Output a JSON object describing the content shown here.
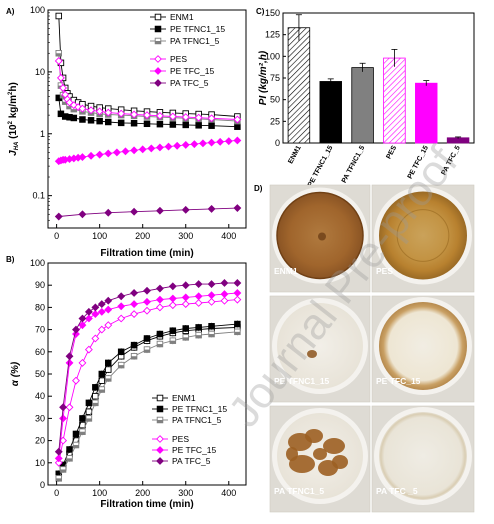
{
  "panels": {
    "a": "A)",
    "b": "B)",
    "c": "C)",
    "d": "D)"
  },
  "watermark": "Journal Pre-proof",
  "colors": {
    "ENM1": "#000000",
    "PE TFNC1_15": "#000000",
    "PA TFNC1_5": "#808080",
    "PES": "#ff00ff",
    "PE TFC_15": "#ff00ff",
    "PA TFC_5": "#800080"
  },
  "chart_data": [
    {
      "id": "A",
      "type": "line",
      "log_y": true,
      "xlabel": "Filtration time (min)",
      "ylabel_parts": [
        "J",
        "HA",
        " (10",
        "2",
        " kg/m",
        "2",
        "h)"
      ],
      "xlim": [
        -20,
        440
      ],
      "ylim": [
        0.03,
        100
      ],
      "xticks": [
        0,
        100,
        200,
        300,
        400
      ],
      "yticks": [
        {
          "v": 0.1,
          "label": "0.1"
        },
        {
          "v": 1,
          "label": "1"
        },
        {
          "v": 10,
          "label": "10"
        },
        {
          "v": 100,
          "label": "100"
        }
      ],
      "legend": [
        "ENM1",
        "PE TFNC1_15",
        "PA TFNC1_5",
        "PES",
        "PE TFC_15",
        "PA TFC_5"
      ],
      "series": [
        {
          "name": "ENM1",
          "marker": "square-open",
          "x": [
            5,
            10,
            15,
            20,
            25,
            30,
            40,
            50,
            60,
            80,
            100,
            120,
            150,
            180,
            210,
            240,
            270,
            300,
            330,
            360,
            420
          ],
          "y": [
            80,
            14,
            8,
            5.5,
            4.5,
            4.0,
            3.5,
            3.2,
            3.0,
            2.8,
            2.65,
            2.55,
            2.45,
            2.35,
            2.28,
            2.22,
            2.17,
            2.12,
            2.08,
            2.04,
            1.9
          ]
        },
        {
          "name": "PE TFNC1_15",
          "marker": "square-filled",
          "x": [
            5,
            10,
            20,
            30,
            40,
            60,
            80,
            100,
            120,
            150,
            180,
            210,
            240,
            270,
            300,
            330,
            360,
            420
          ],
          "y": [
            3.8,
            2.1,
            1.9,
            1.85,
            1.8,
            1.7,
            1.65,
            1.6,
            1.55,
            1.5,
            1.48,
            1.45,
            1.43,
            1.41,
            1.39,
            1.37,
            1.35,
            1.3
          ]
        },
        {
          "name": "PA TFNC1_5",
          "marker": "square-half",
          "x": [
            5,
            10,
            15,
            20,
            30,
            40,
            60,
            80,
            100,
            120,
            150,
            180,
            210,
            240,
            270,
            300,
            330,
            360,
            420
          ],
          "y": [
            20,
            6.0,
            4.2,
            3.3,
            2.8,
            2.5,
            2.3,
            2.2,
            2.1,
            2.05,
            2.0,
            1.95,
            1.9,
            1.86,
            1.82,
            1.78,
            1.74,
            1.7,
            1.6
          ]
        },
        {
          "name": "PES",
          "marker": "diamond-open",
          "x": [
            5,
            10,
            15,
            20,
            25,
            30,
            40,
            50,
            60,
            80,
            100,
            120,
            150,
            180,
            210,
            240,
            270,
            300,
            330,
            360,
            420
          ],
          "y": [
            15,
            8,
            5.5,
            4.3,
            3.6,
            3.2,
            2.9,
            2.7,
            2.55,
            2.4,
            2.3,
            2.2,
            2.12,
            2.05,
            2.0,
            1.95,
            1.9,
            1.86,
            1.82,
            1.78,
            1.7
          ]
        },
        {
          "name": "PE TFC_15",
          "marker": "diamond-filled",
          "x": [
            5,
            10,
            15,
            20,
            30,
            40,
            50,
            60,
            80,
            100,
            120,
            140,
            160,
            180,
            200,
            220,
            240,
            260,
            280,
            300,
            320,
            340,
            360,
            380,
            400,
            420
          ],
          "y": [
            0.36,
            0.37,
            0.38,
            0.38,
            0.39,
            0.4,
            0.41,
            0.42,
            0.44,
            0.46,
            0.48,
            0.5,
            0.52,
            0.54,
            0.56,
            0.58,
            0.6,
            0.62,
            0.64,
            0.66,
            0.68,
            0.7,
            0.72,
            0.74,
            0.76,
            0.78
          ]
        },
        {
          "name": "PA TFC_5",
          "marker": "diamond-filled",
          "x": [
            5,
            60,
            120,
            180,
            240,
            300,
            360,
            420
          ],
          "y": [
            0.046,
            0.05,
            0.053,
            0.055,
            0.057,
            0.059,
            0.061,
            0.063
          ]
        }
      ]
    },
    {
      "id": "B",
      "type": "line",
      "xlabel": "Filtration time (min)",
      "ylabel": "α (%)",
      "xlim": [
        -20,
        440
      ],
      "ylim": [
        0,
        100
      ],
      "xticks": [
        0,
        100,
        200,
        300,
        400
      ],
      "yticks": [
        0,
        10,
        20,
        30,
        40,
        50,
        60,
        70,
        80,
        90,
        100
      ],
      "legend": [
        "ENM1",
        "PE TFNC1_15",
        "PA TFNC1_5",
        "PES",
        "PE TFC_15",
        "PA TFC_5"
      ],
      "series": [
        {
          "name": "ENM1",
          "marker": "square-open",
          "x": [
            5,
            15,
            30,
            45,
            60,
            75,
            90,
            105,
            120,
            150,
            180,
            210,
            240,
            270,
            300,
            330,
            360,
            420
          ],
          "y": [
            5,
            8,
            14,
            20,
            27,
            33,
            40,
            47,
            52,
            58,
            62,
            65,
            67,
            68.5,
            69.5,
            70,
            70.5,
            71
          ]
        },
        {
          "name": "PE TFNC1_15",
          "marker": "square-filled",
          "x": [
            5,
            15,
            30,
            45,
            60,
            75,
            90,
            105,
            120,
            150,
            180,
            210,
            240,
            270,
            300,
            330,
            360,
            420
          ],
          "y": [
            5,
            9,
            16,
            23,
            30,
            37,
            44,
            50,
            55,
            60,
            63,
            66,
            68,
            69.5,
            70.5,
            71,
            71.5,
            72.5
          ]
        },
        {
          "name": "PA TFNC1_5",
          "marker": "square-half",
          "x": [
            5,
            15,
            30,
            45,
            60,
            75,
            90,
            105,
            120,
            150,
            180,
            210,
            240,
            270,
            300,
            330,
            360,
            420
          ],
          "y": [
            3,
            7,
            12,
            18,
            24,
            30,
            37,
            43,
            48,
            54,
            58,
            61,
            63.5,
            65,
            66.5,
            67.5,
            68,
            69
          ]
        },
        {
          "name": "PES",
          "marker": "diamond-open",
          "x": [
            5,
            15,
            30,
            45,
            60,
            75,
            90,
            105,
            120,
            150,
            180,
            210,
            240,
            270,
            300,
            330,
            360,
            390,
            420
          ],
          "y": [
            10,
            20,
            35,
            47,
            55,
            61,
            66,
            70,
            72,
            75,
            77,
            78.5,
            80,
            81,
            81.5,
            82,
            82.5,
            83,
            83.5
          ]
        },
        {
          "name": "PE TFC_15",
          "marker": "diamond-filled",
          "x": [
            5,
            15,
            30,
            45,
            60,
            75,
            90,
            105,
            120,
            150,
            180,
            210,
            240,
            270,
            300,
            330,
            360,
            390,
            420
          ],
          "y": [
            12,
            30,
            55,
            68,
            72,
            75,
            77,
            78,
            79,
            80.5,
            81.5,
            82.5,
            83.5,
            84,
            84.5,
            85,
            85.5,
            86,
            86.5
          ]
        },
        {
          "name": "PA TFC_5",
          "marker": "diamond-filled",
          "x": [
            5,
            15,
            30,
            45,
            60,
            75,
            90,
            105,
            120,
            150,
            180,
            210,
            240,
            270,
            300,
            330,
            360,
            390,
            420
          ],
          "y": [
            15,
            35,
            58,
            70,
            75,
            78,
            80,
            81.5,
            83,
            85,
            86.5,
            87.5,
            88.5,
            89.5,
            90,
            90.5,
            90.5,
            91,
            91
          ]
        }
      ]
    },
    {
      "id": "C",
      "type": "bar",
      "ylabel": "PI (kg/m²,h)",
      "ylim": [
        0,
        150
      ],
      "yticks": [
        0,
        25,
        50,
        75,
        100,
        125,
        150
      ],
      "categories": [
        "ENM1",
        "PE TFNC1_15",
        "PA TFNC1_5",
        "PES",
        "PE TFC_15",
        "PA TFC_5"
      ],
      "values": [
        133,
        71,
        87,
        98,
        69,
        6
      ],
      "errors": [
        15,
        3,
        5,
        10,
        3,
        1
      ],
      "styles": [
        "hatch-black",
        "black",
        "gray",
        "hatch-magenta",
        "magenta",
        "purple"
      ]
    }
  ],
  "photos": [
    {
      "label": "ENM1",
      "style": "brown-full"
    },
    {
      "label": "PES",
      "style": "amber-full"
    },
    {
      "label": "PE TFNC1_15",
      "style": "white-spot"
    },
    {
      "label": "PE TFC_15",
      "style": "light-ring"
    },
    {
      "label": "PA TFNC1_5",
      "style": "brown-patches"
    },
    {
      "label": "PA TFC _5",
      "style": "white-ring"
    }
  ]
}
